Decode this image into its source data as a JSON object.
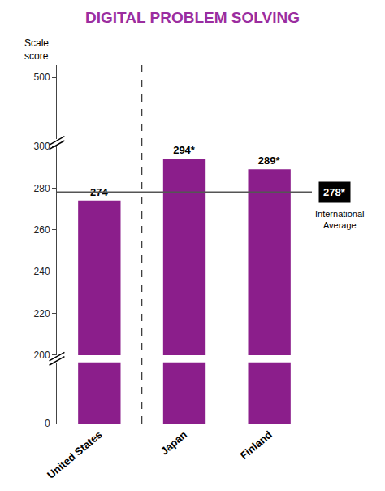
{
  "chart_data": {
    "type": "bar",
    "title": "DIGITAL PROBLEM SOLVING",
    "title_color": "#9B2DA0",
    "ylabel": "Scale\nscore",
    "categories": [
      "United States",
      "Japan",
      "Finland"
    ],
    "values": [
      274,
      294,
      289
    ],
    "value_labels": [
      "274",
      "294*",
      "289*"
    ],
    "data_labels": true,
    "color": "#8B1E8B",
    "ylim": [
      0,
      540
    ],
    "yticks": [
      0,
      200,
      220,
      240,
      260,
      280,
      300,
      500
    ],
    "grid": false,
    "reference_line": {
      "value": 278,
      "label": "278*",
      "text": "International\nAverage",
      "color": "#555555"
    },
    "separator": {
      "after": "United States",
      "color": "#333333",
      "line_style": "dashed"
    }
  }
}
